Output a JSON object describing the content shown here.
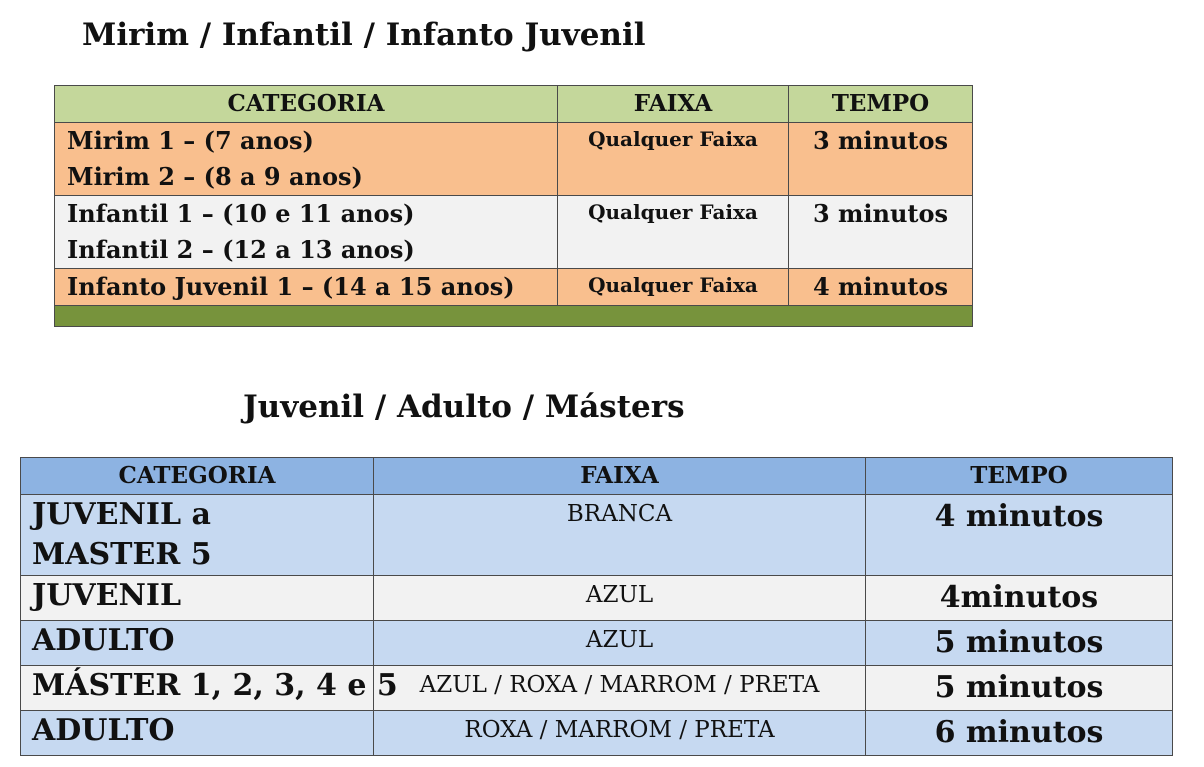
{
  "table1": {
    "title": "Mirim / Infantil / Infanto Juvenil",
    "headers": {
      "categoria": "CATEGORIA",
      "faixa": "FAIXA",
      "tempo": "TEMPO"
    },
    "rows": [
      {
        "categoria": [
          "Mirim 1 – (7 anos)",
          "Mirim 2 – (8 a 9 anos)"
        ],
        "faixa": "Qualquer Faixa",
        "tempo": "3 minutos"
      },
      {
        "categoria": [
          "Infantil 1 – (10 e 11 anos)",
          "Infantil 2 – (12 a 13 anos)"
        ],
        "faixa": "Qualquer Faixa",
        "tempo": "3 minutos"
      },
      {
        "categoria": [
          "Infanto Juvenil 1 – (14 a 15 anos)"
        ],
        "faixa": "Qualquer Faixa",
        "tempo": "4 minutos"
      }
    ],
    "colors": {
      "header": "#c4d79b",
      "orange_row": "#f9bf8e",
      "grey_row": "#f2f2f2",
      "footer": "#77933c"
    }
  },
  "table2": {
    "title": "Juvenil / Adulto / Másters",
    "headers": {
      "categoria": "CATEGORIA",
      "faixa": "FAIXA",
      "tempo": "TEMPO"
    },
    "rows": [
      {
        "categoria": [
          "JUVENIL a",
          "MASTER 5"
        ],
        "faixa": "BRANCA",
        "tempo": "4 minutos"
      },
      {
        "categoria": [
          "JUVENIL"
        ],
        "faixa": "AZUL",
        "tempo": "4minutos"
      },
      {
        "categoria": [
          "ADULTO"
        ],
        "faixa": "AZUL",
        "tempo": "5 minutos"
      },
      {
        "categoria": [
          "MÁSTER 1, 2, 3, 4 e 5"
        ],
        "faixa": "AZUL / ROXA / MARROM / PRETA",
        "tempo": "5 minutos"
      },
      {
        "categoria": [
          "ADULTO"
        ],
        "faixa": "ROXA / MARROM / PRETA",
        "tempo": "6 minutos"
      }
    ],
    "colors": {
      "header": "#8db3e2",
      "blue_row": "#c6d9f1",
      "grey_row": "#f2f2f2"
    }
  }
}
